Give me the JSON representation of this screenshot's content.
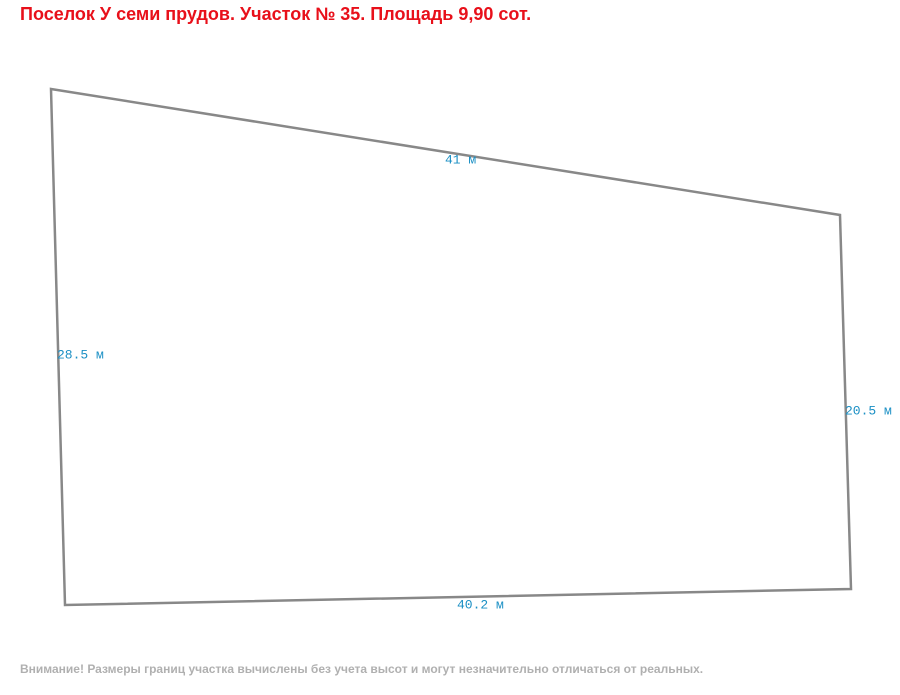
{
  "header": {
    "title": "Поселок У семи прудов. Участок № 35. Площадь 9,90 сот."
  },
  "plot": {
    "edges": [
      {
        "label": "41 м"
      },
      {
        "label": "28.5 м"
      },
      {
        "label": "20.5 м"
      },
      {
        "label": "40.2 м"
      }
    ]
  },
  "footer": {
    "note": "Внимание! Размеры границ участка вычислены без учета высот и могут незначительно отличаться от реальных."
  }
}
